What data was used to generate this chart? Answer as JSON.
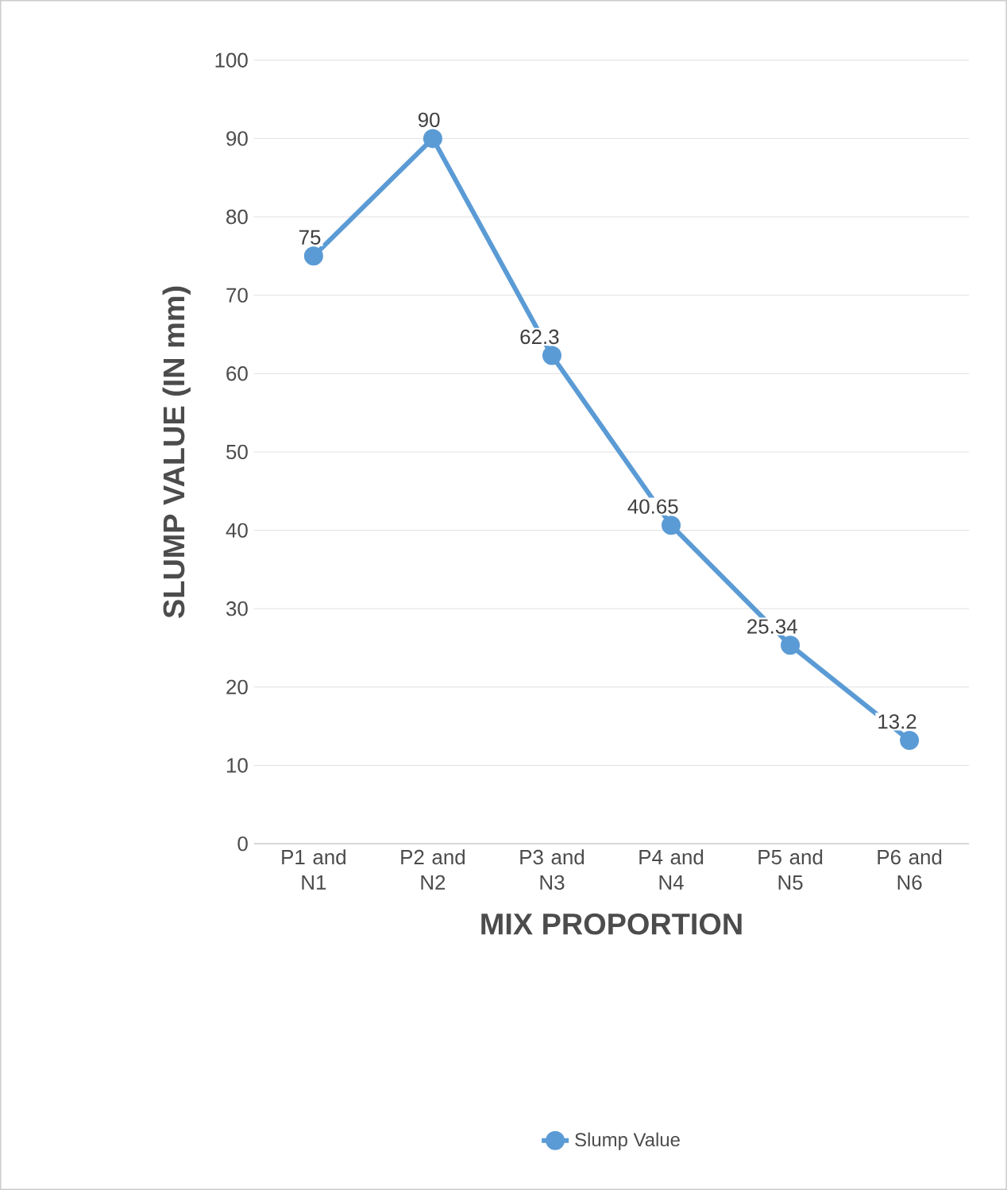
{
  "chart_data": {
    "type": "line",
    "xlabel": "MIX PROPORTION",
    "ylabel": "SLUMP VALUE (IN mm)",
    "categories": [
      "P1 and N1",
      "P2 and N2",
      "P3 and N3",
      "P4 and N4",
      "P5 and N5",
      "P6 and N6"
    ],
    "series": [
      {
        "name": "Slump Value",
        "color": "#5b9bd5",
        "values": [
          75,
          90,
          62.3,
          40.65,
          25.34,
          13.2
        ]
      }
    ],
    "ylim": [
      0,
      100
    ],
    "yticks": [
      0,
      10,
      20,
      30,
      40,
      50,
      60,
      70,
      80,
      90,
      100
    ],
    "grid": "y",
    "legend": "bottom",
    "marker": "circle",
    "line_style": "solid",
    "data_labels": true
  }
}
